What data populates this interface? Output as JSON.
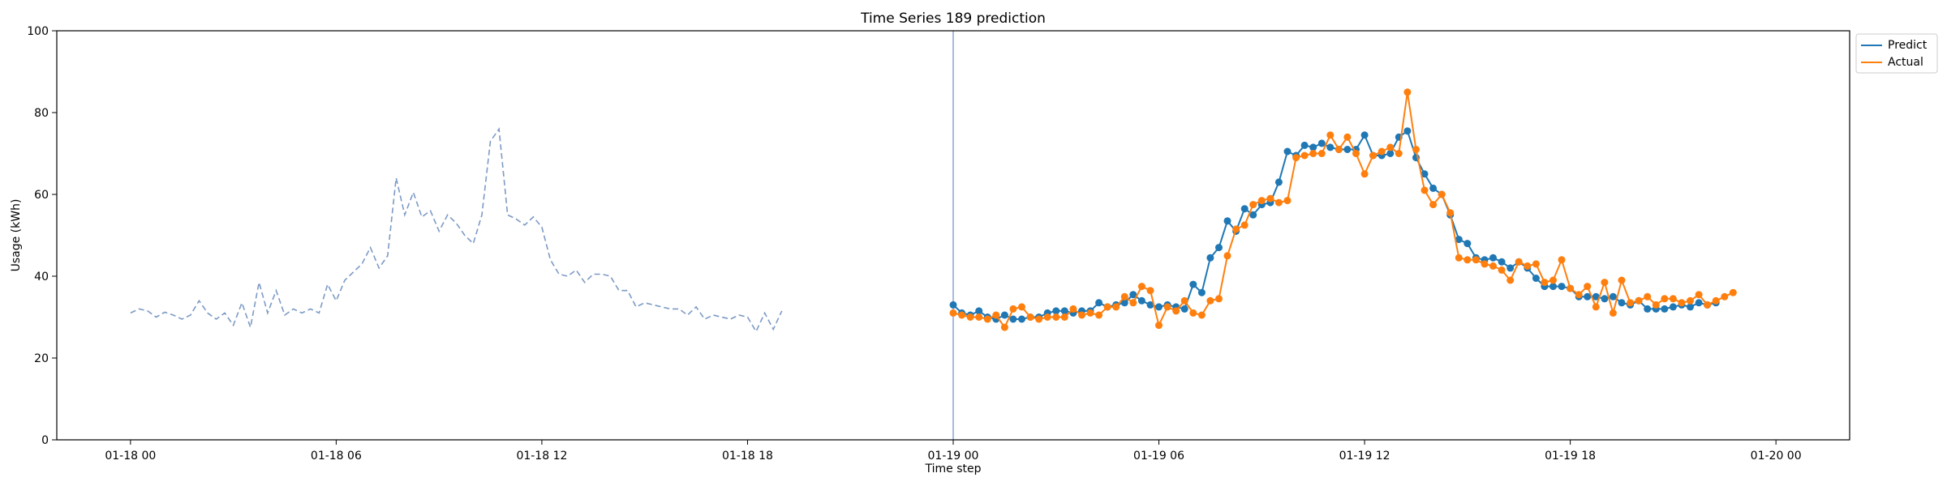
{
  "chart_data": {
    "type": "line",
    "title": "Time Series 189 prediction",
    "xlabel": "Time step",
    "ylabel": "Usage (kWh)",
    "ylim": [
      0,
      100
    ],
    "yticks": [
      0,
      20,
      40,
      60,
      80,
      100
    ],
    "xlim": [
      "2021-01-17T21:51",
      "2021-01-20T02:09"
    ],
    "xtick_labels": [
      "01-18 00",
      "01-18 06",
      "01-18 12",
      "01-18 18",
      "01-19 00",
      "01-19 06",
      "01-19 12",
      "01-19 18",
      "01-20 00"
    ],
    "xtick_times": [
      "2021-01-18T00:00",
      "2021-01-18T06:00",
      "2021-01-18T12:00",
      "2021-01-18T18:00",
      "2021-01-19T00:00",
      "2021-01-19T06:00",
      "2021-01-19T12:00",
      "2021-01-19T18:00",
      "2021-01-20T00:00"
    ],
    "grid": false,
    "legend_position": "upper right (outside plot)",
    "forecast_start": "2021-01-19T00:00",
    "interval_minutes": 15,
    "history": {
      "start": "2021-01-18T00:00",
      "color": "#6688bb",
      "style": "dashed",
      "values": [
        31.0,
        32.0,
        31.5,
        30.0,
        31.2,
        30.5,
        29.5,
        30.5,
        34.0,
        31.0,
        29.5,
        31.0,
        28.0,
        33.5,
        27.5,
        38.5,
        31.0,
        36.5,
        30.5,
        32.0,
        31.0,
        32.0,
        31.0,
        38.0,
        34.0,
        39.0,
        41.0,
        43.0,
        47.0,
        42.0,
        45.0,
        64.0,
        55.0,
        60.5,
        54.5,
        56.0,
        51.0,
        55.0,
        53.0,
        50.0,
        48.0,
        55.0,
        73.0,
        76.0,
        55.0,
        54.0,
        52.5,
        54.5,
        52.0,
        44.0,
        40.5,
        40.0,
        41.5,
        38.5,
        40.5,
        40.5,
        40.0,
        36.5,
        36.5,
        32.5,
        33.5,
        33.0,
        32.5,
        32.0,
        32.0,
        30.5,
        32.5,
        29.5,
        30.5,
        30.0,
        29.5,
        30.5,
        30.0,
        26.5,
        31.0,
        27.0,
        31.5
      ]
    },
    "series": [
      {
        "name": "Predict",
        "color": "#1f77b4",
        "start": "2021-01-19T00:00",
        "values": [
          33.0,
          31.0,
          30.5,
          31.5,
          30.0,
          29.5,
          30.5,
          29.5,
          29.5,
          30.0,
          30.0,
          31.0,
          31.5,
          31.5,
          31.0,
          31.5,
          31.5,
          33.5,
          32.5,
          33.0,
          33.5,
          35.5,
          34.0,
          33.0,
          32.5,
          33.0,
          32.5,
          32.0,
          38.0,
          36.0,
          44.5,
          47.0,
          53.5,
          51.0,
          56.5,
          55.0,
          57.5,
          58.0,
          63.0,
          70.5,
          69.5,
          72.0,
          71.5,
          72.5,
          71.5,
          71.0,
          71.0,
          71.0,
          74.5,
          69.5,
          69.5,
          70.0,
          74.0,
          75.5,
          69.0,
          65.0,
          61.5,
          60.0,
          55.0,
          49.0,
          48.0,
          44.5,
          44.0,
          44.5,
          43.5,
          42.0,
          43.5,
          42.0,
          39.5,
          37.5,
          37.5,
          37.5,
          37.0,
          35.0,
          35.0,
          35.0,
          34.5,
          35.0,
          33.5,
          33.0,
          34.0,
          32.0,
          32.0,
          32.0,
          32.5,
          33.0,
          32.5,
          33.5,
          33.0,
          33.5
        ]
      },
      {
        "name": "Actual",
        "color": "#ff7f0e",
        "start": "2021-01-19T00:00",
        "values": [
          31.0,
          30.5,
          30.0,
          30.0,
          29.5,
          30.5,
          27.5,
          32.0,
          32.5,
          30.0,
          29.5,
          30.0,
          30.0,
          30.0,
          32.0,
          30.5,
          31.0,
          30.5,
          32.5,
          32.5,
          35.0,
          33.5,
          37.5,
          36.5,
          28.0,
          32.5,
          31.5,
          34.0,
          31.0,
          30.5,
          34.0,
          34.5,
          45.0,
          51.5,
          52.5,
          57.5,
          58.5,
          59.0,
          58.0,
          58.5,
          69.0,
          69.5,
          70.0,
          70.0,
          74.5,
          71.0,
          74.0,
          70.0,
          65.0,
          69.5,
          70.5,
          71.5,
          70.0,
          85.0,
          71.0,
          61.0,
          57.5,
          60.0,
          55.5,
          44.5,
          44.0,
          44.0,
          43.0,
          42.5,
          41.5,
          39.0,
          43.5,
          42.5,
          43.0,
          38.5,
          39.0,
          44.0,
          37.0,
          35.5,
          37.5,
          32.5,
          38.5,
          31.0,
          39.0,
          33.5,
          34.0,
          35.0,
          33.0,
          34.5,
          34.5,
          33.5,
          34.0,
          35.5,
          33.0,
          34.0,
          35.0,
          36.0
        ]
      }
    ]
  }
}
